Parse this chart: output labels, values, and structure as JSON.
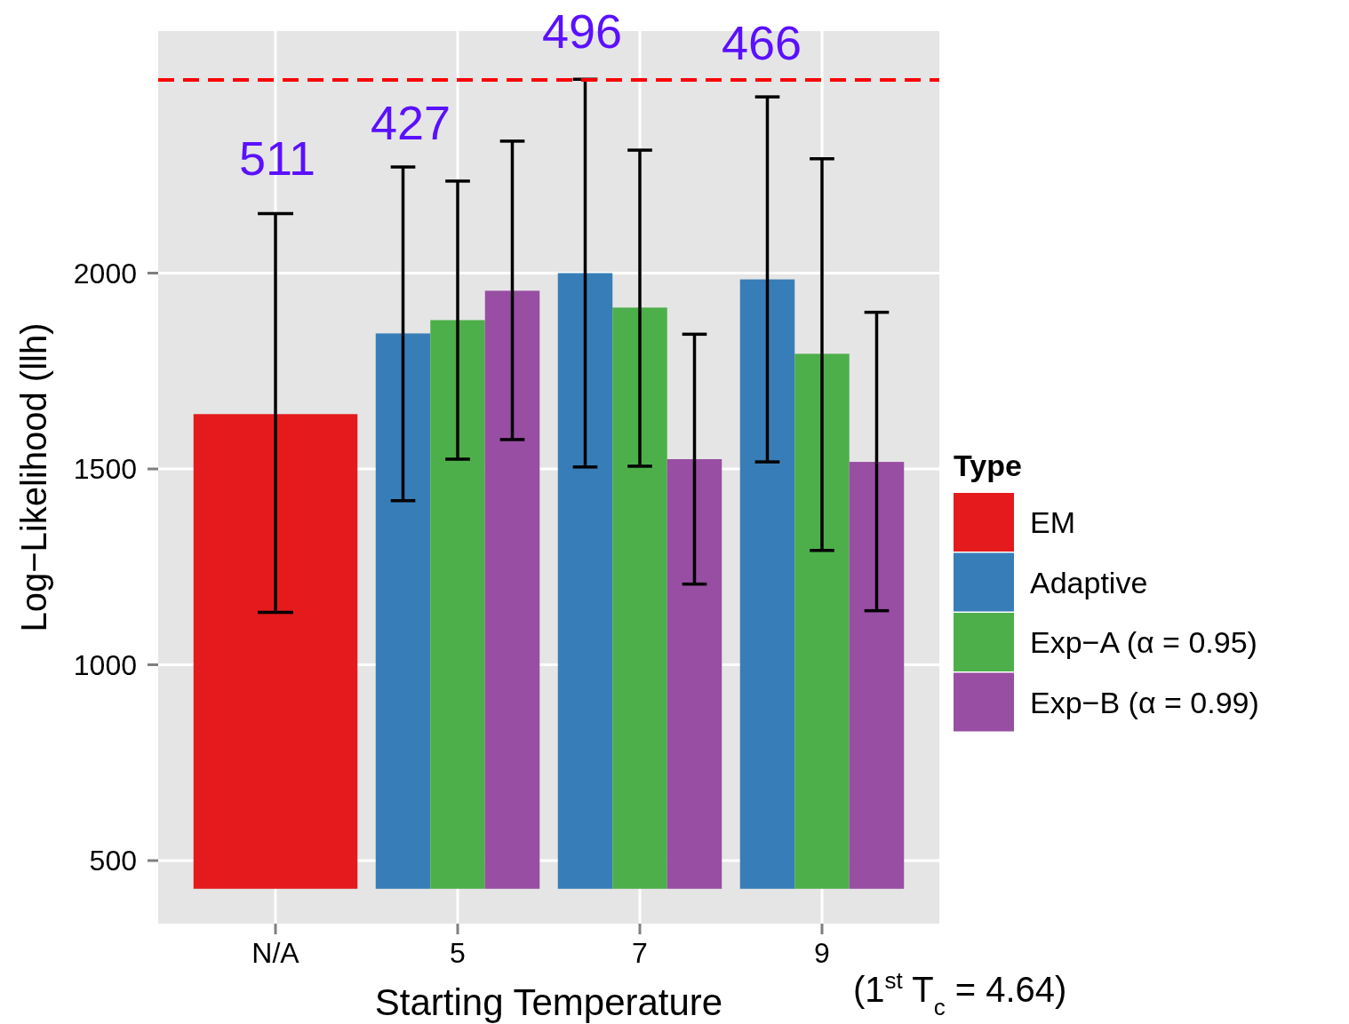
{
  "chart_data": {
    "type": "bar",
    "xlabel": "Starting Temperature",
    "ylabel": "Log−Likelihood (llh)",
    "legend_title": "Type",
    "legend": "right",
    "grid": true,
    "categories": [
      "N/A",
      "5",
      "7",
      "9"
    ],
    "ylim": [
      339,
      2618
    ],
    "yticks": [
      500,
      1000,
      1500,
      2000
    ],
    "series": [
      {
        "name": "EM",
        "color": "#e41a1c",
        "base": [
          428,
          null,
          null,
          null
        ],
        "values": [
          1212,
          null,
          null,
          null
        ],
        "errors": [
          [
            1134,
            2152
          ],
          null,
          null,
          null
        ]
      },
      {
        "name": "Adaptive",
        "color": "#377eb8",
        "base": [
          null,
          428,
          428,
          428
        ],
        "values": [
          null,
          1418,
          1572,
          1556
        ],
        "errors": [
          null,
          [
            1419,
            2271
          ],
          [
            1505,
            2495
          ],
          [
            1518,
            2450
          ]
        ]
      },
      {
        "name": "Exp−A (α = 0.95)",
        "color": "#4daf4a",
        "base": [
          null,
          428,
          428,
          428
        ],
        "values": [
          null,
          1452,
          1484,
          1366
        ],
        "errors": [
          null,
          [
            1525,
            2235
          ],
          [
            1507,
            2314
          ],
          [
            1292,
            2292
          ]
        ]
      },
      {
        "name": "Exp−B (α = 0.99)",
        "color": "#984ea3",
        "base": [
          null,
          428,
          428,
          428
        ],
        "values": [
          null,
          1527,
          1097,
          1090
        ],
        "errors": [
          null,
          [
            1575,
            2337
          ],
          [
            1206,
            1844
          ],
          [
            1138,
            1900
          ]
        ]
      }
    ],
    "ref_lines": [
      {
        "axis": "y",
        "value": 2493,
        "color": "#ff0000",
        "line_style": "dashed"
      }
    ],
    "annotations": [
      "511",
      "427",
      "496",
      "466",
      "(1$^{st}$ T$_{c}$ = 4.64)"
    ]
  }
}
